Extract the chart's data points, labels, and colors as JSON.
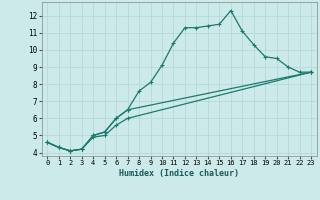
{
  "xlabel": "Humidex (Indice chaleur)",
  "background_color": "#cdeaea",
  "grid_color": "#b8d8d8",
  "line_color": "#1a7a6e",
  "xlim": [
    -0.5,
    23.5
  ],
  "ylim": [
    3.8,
    12.8
  ],
  "yticks": [
    4,
    5,
    6,
    7,
    8,
    9,
    10,
    11,
    12
  ],
  "xticks": [
    0,
    1,
    2,
    3,
    4,
    5,
    6,
    7,
    8,
    9,
    10,
    11,
    12,
    13,
    14,
    15,
    16,
    17,
    18,
    19,
    20,
    21,
    22,
    23
  ],
  "series1": [
    [
      0,
      4.6
    ],
    [
      1,
      4.3
    ],
    [
      2,
      4.1
    ],
    [
      3,
      4.2
    ],
    [
      4,
      5.0
    ],
    [
      5,
      5.2
    ],
    [
      6,
      6.0
    ],
    [
      7,
      6.5
    ],
    [
      8,
      7.6
    ],
    [
      9,
      8.1
    ],
    [
      10,
      9.1
    ],
    [
      11,
      10.4
    ],
    [
      12,
      11.3
    ],
    [
      13,
      11.3
    ],
    [
      14,
      11.4
    ],
    [
      15,
      11.5
    ],
    [
      16,
      12.3
    ],
    [
      17,
      11.1
    ],
    [
      18,
      10.3
    ],
    [
      19,
      9.6
    ],
    [
      20,
      9.5
    ],
    [
      21,
      9.0
    ],
    [
      22,
      8.7
    ],
    [
      23,
      8.7
    ]
  ],
  "series2": [
    [
      0,
      4.6
    ],
    [
      1,
      4.3
    ],
    [
      2,
      4.1
    ],
    [
      3,
      4.2
    ],
    [
      4,
      5.0
    ],
    [
      5,
      5.2
    ],
    [
      6,
      6.0
    ],
    [
      7,
      6.5
    ],
    [
      23,
      8.7
    ]
  ],
  "series3": [
    [
      0,
      4.6
    ],
    [
      1,
      4.3
    ],
    [
      2,
      4.1
    ],
    [
      3,
      4.2
    ],
    [
      4,
      4.9
    ],
    [
      5,
      5.0
    ],
    [
      6,
      5.6
    ],
    [
      7,
      6.0
    ],
    [
      23,
      8.7
    ]
  ]
}
